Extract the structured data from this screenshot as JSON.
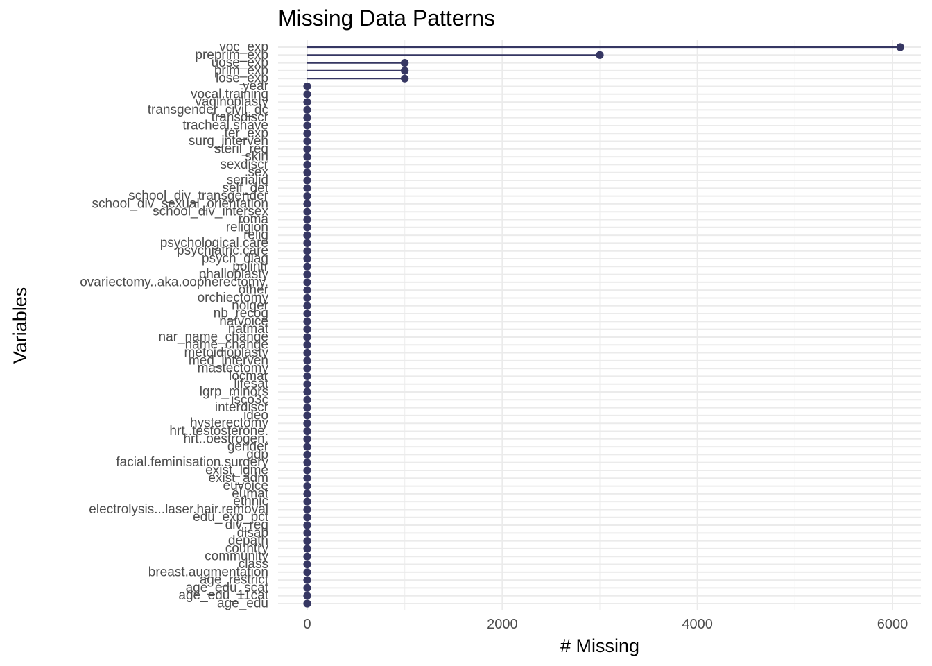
{
  "chart_data": {
    "type": "lollipop",
    "title": "Missing Data Patterns",
    "xlabel": "# Missing",
    "ylabel": "Variables",
    "xlim": [
      -300,
      6300
    ],
    "x_ticks": [
      0,
      2000,
      4000,
      6000
    ],
    "grid": true,
    "color": "#363763",
    "categories": [
      "voc_exp",
      "preprim_exp",
      "uose_exp",
      "prim_exp",
      "lose_exp",
      "year",
      "vocal.training",
      "vaginoplasty",
      "transgender_civil_dc",
      "transdiscr",
      "tracheal.shave",
      "ter_exp",
      "surg_interven",
      "steril_req",
      "skin",
      "sexdiscr",
      "sex",
      "serialid",
      "self_det",
      "school_div_transgender",
      "school_div_sexual_orientation",
      "school_div_intersex",
      "roma",
      "religion",
      "relig",
      "psychological.care",
      "psychiatric.care",
      "psych_diag",
      "polintr",
      "phalloplasty",
      "ovariectomy..aka.oopherectomy.",
      "other",
      "orchiectomy",
      "nolger",
      "nb_recog",
      "natvoice",
      "natmat",
      "nar_name_change",
      "name_change",
      "metoidioplasty",
      "med_interven",
      "mastectomy",
      "locmar",
      "lifesat",
      "lgrp_minors",
      "isco3c",
      "interdiscr",
      "ideo",
      "hysterectomy",
      "hrt..testosterone.",
      "hrt..oestrogen.",
      "gender",
      "gdp",
      "facial.feminisation.surgery",
      "exist_lgme",
      "exist_adm",
      "euvoice",
      "eumat",
      "ethnic",
      "electrolysis...laser.hair.removal",
      "edu_exp_pct",
      "div_req",
      "disab",
      "depath",
      "country",
      "community",
      "class",
      "breast.augmentation",
      "age_restrict",
      "age_edu_scat",
      "age_edu_11cat",
      "age_edu"
    ],
    "values": [
      6080,
      3000,
      1000,
      1000,
      1000,
      0,
      0,
      0,
      0,
      0,
      0,
      0,
      0,
      0,
      0,
      0,
      0,
      0,
      0,
      0,
      0,
      0,
      0,
      0,
      0,
      0,
      0,
      0,
      0,
      0,
      0,
      0,
      0,
      0,
      0,
      0,
      0,
      0,
      0,
      0,
      0,
      0,
      0,
      0,
      0,
      0,
      0,
      0,
      0,
      0,
      0,
      0,
      0,
      0,
      0,
      0,
      0,
      0,
      0,
      0,
      0,
      0,
      0,
      0,
      0,
      0,
      0,
      0,
      0,
      0,
      0,
      0
    ]
  }
}
